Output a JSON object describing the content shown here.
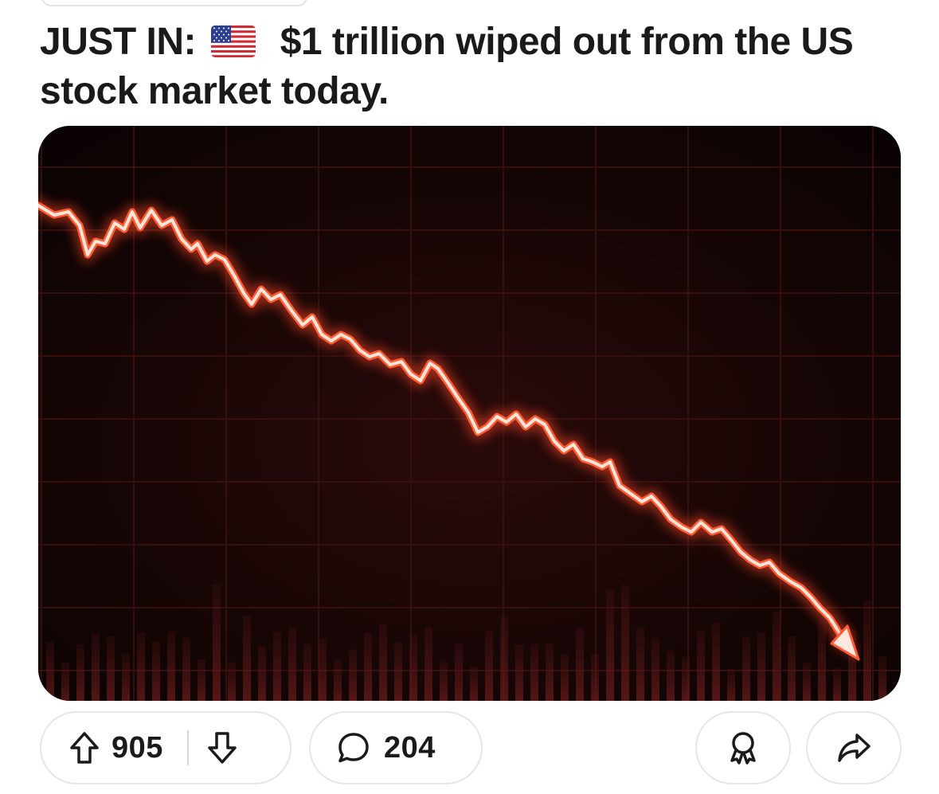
{
  "post": {
    "title_prefix": "JUST IN:",
    "flag_icon": "us-flag-emoji",
    "title_rest": "$1 trillion wiped out from the US stock market today."
  },
  "media": {
    "kind": "illustration",
    "icon": "falling-stock-chart",
    "colors": {
      "background": "#0d0405",
      "grid": "#3a1010",
      "line": "#ff3b1f",
      "glow": "#ff6a40"
    }
  },
  "actions": {
    "upvote_icon": "arrow-up-icon",
    "upvotes": "905",
    "downvote_icon": "arrow-down-icon",
    "comment_icon": "speech-bubble-icon",
    "comments": "204",
    "award_icon": "award-ribbon-icon",
    "share_icon": "share-arrow-icon"
  }
}
